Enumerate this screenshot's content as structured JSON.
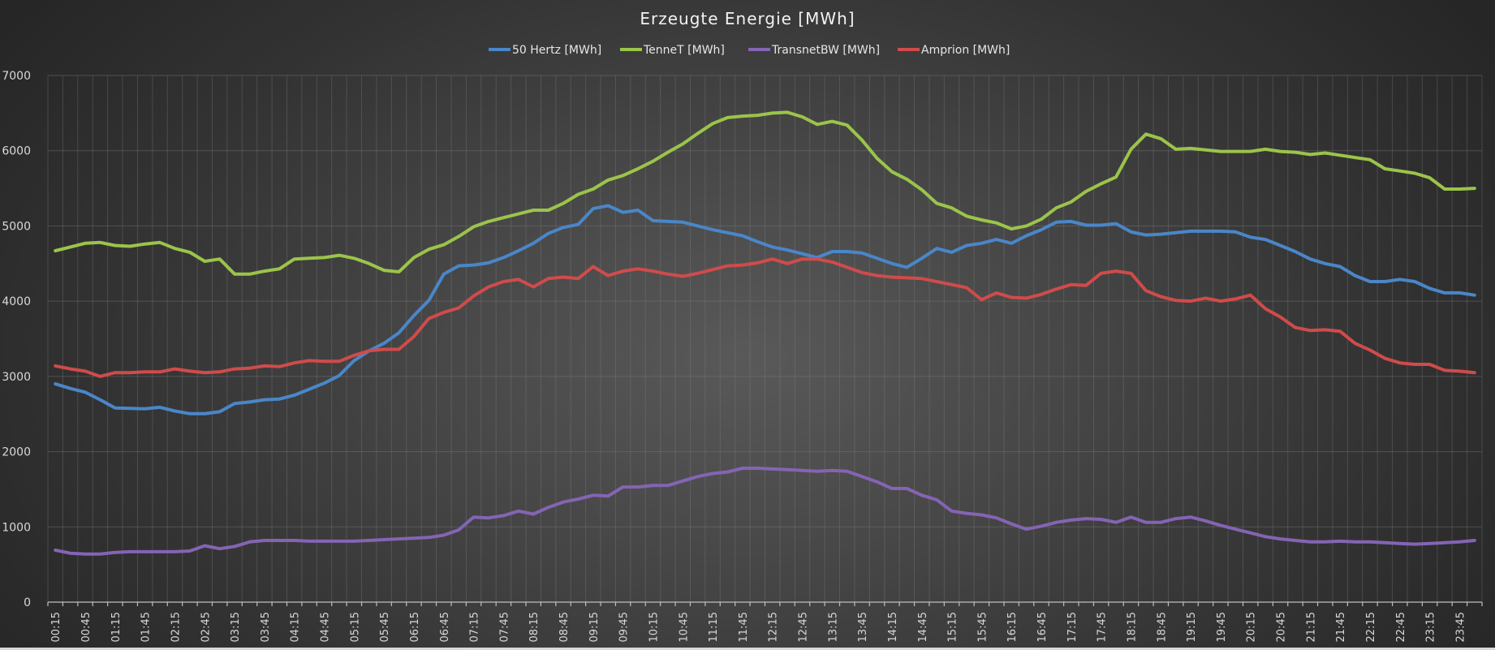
{
  "chart_data": {
    "type": "line",
    "title": "Erzeugte Energie [MWh]",
    "xlabel": "",
    "ylabel": "",
    "ylim": [
      0,
      7000
    ],
    "yticks": [
      0,
      1000,
      2000,
      3000,
      4000,
      5000,
      6000,
      7000
    ],
    "grid": true,
    "legend_position": "top",
    "x": [
      "00:15",
      "00:30",
      "00:45",
      "01:00",
      "01:15",
      "01:30",
      "01:45",
      "02:00",
      "02:15",
      "02:30",
      "02:45",
      "03:00",
      "03:15",
      "03:30",
      "03:45",
      "04:00",
      "04:15",
      "04:30",
      "04:45",
      "05:00",
      "05:15",
      "05:30",
      "05:45",
      "06:00",
      "06:15",
      "06:30",
      "06:45",
      "07:00",
      "07:15",
      "07:30",
      "07:45",
      "08:00",
      "08:15",
      "08:30",
      "08:45",
      "09:00",
      "09:15",
      "09:30",
      "09:45",
      "10:00",
      "10:15",
      "10:30",
      "10:45",
      "11:00",
      "11:15",
      "11:30",
      "11:45",
      "12:00",
      "12:15",
      "12:30",
      "12:45",
      "13:00",
      "13:15",
      "13:30",
      "13:45",
      "14:00",
      "14:15",
      "14:30",
      "14:45",
      "15:00",
      "15:15",
      "15:30",
      "15:45",
      "16:00",
      "16:15",
      "16:30",
      "16:45",
      "17:00",
      "17:15",
      "17:30",
      "17:45",
      "18:00",
      "18:15",
      "18:30",
      "18:45",
      "19:00",
      "19:15",
      "19:30",
      "19:45",
      "20:00",
      "20:15",
      "20:30",
      "20:45",
      "21:00",
      "21:15",
      "21:30",
      "21:45",
      "22:00",
      "22:15",
      "22:30",
      "22:45",
      "23:00",
      "23:15",
      "23:30",
      "23:45",
      "00:00"
    ],
    "xtick_labels": [
      "00:15",
      "00:45",
      "01:15",
      "01:45",
      "02:15",
      "02:45",
      "03:15",
      "03:45",
      "04:15",
      "04:45",
      "05:15",
      "05:45",
      "06:15",
      "06:45",
      "07:15",
      "07:45",
      "08:15",
      "08:45",
      "09:15",
      "09:45",
      "10:15",
      "10:45",
      "11:15",
      "11:45",
      "12:15",
      "12:45",
      "13:15",
      "13:45",
      "14:15",
      "14:45",
      "15:15",
      "15:45",
      "16:15",
      "16:45",
      "17:15",
      "17:45",
      "18:15",
      "18:45",
      "19:15",
      "19:45",
      "20:15",
      "20:45",
      "21:15",
      "21:45",
      "22:15",
      "22:45",
      "23:15",
      "23:45"
    ],
    "series": [
      {
        "name": "50 Hertz [MWh]",
        "color": "#4a86c8",
        "values": [
          2900,
          2840,
          2790,
          2690,
          2580,
          2575,
          2570,
          2590,
          2540,
          2505,
          2505,
          2530,
          2640,
          2660,
          2690,
          2700,
          2750,
          2830,
          2910,
          3010,
          3210,
          3340,
          3440,
          3580,
          3810,
          4010,
          4360,
          4470,
          4480,
          4510,
          4580,
          4670,
          4770,
          4900,
          4980,
          5020,
          5230,
          5270,
          5180,
          5210,
          5070,
          5060,
          5050,
          5000,
          4950,
          4910,
          4870,
          4790,
          4720,
          4680,
          4630,
          4580,
          4660,
          4660,
          4640,
          4570,
          4500,
          4450,
          4570,
          4700,
          4650,
          4740,
          4770,
          4820,
          4770,
          4870,
          4950,
          5050,
          5060,
          5010,
          5010,
          5030,
          4920,
          4880,
          4890,
          4910,
          4930,
          4930,
          4930,
          4920,
          4850,
          4820,
          4740,
          4660,
          4560,
          4500,
          4460,
          4340,
          4260,
          4260,
          4290,
          4260,
          4170,
          4110,
          4110,
          4080
        ]
      },
      {
        "name": "TenneT [MWh]",
        "color": "#9bc44a",
        "values": [
          4670,
          4720,
          4770,
          4780,
          4740,
          4730,
          4760,
          4780,
          4700,
          4650,
          4530,
          4560,
          4360,
          4360,
          4400,
          4430,
          4560,
          4570,
          4580,
          4610,
          4570,
          4500,
          4410,
          4390,
          4580,
          4690,
          4750,
          4860,
          4990,
          5060,
          5110,
          5160,
          5210,
          5210,
          5300,
          5420,
          5490,
          5610,
          5670,
          5760,
          5860,
          5980,
          6090,
          6230,
          6360,
          6440,
          6460,
          6470,
          6500,
          6510,
          6450,
          6350,
          6390,
          6340,
          6140,
          5900,
          5720,
          5620,
          5480,
          5300,
          5240,
          5130,
          5080,
          5040,
          4960,
          5000,
          5090,
          5240,
          5320,
          5460,
          5560,
          5650,
          6020,
          6220,
          6160,
          6020,
          6030,
          6010,
          5990,
          5990,
          5990,
          6020,
          5990,
          5980,
          5950,
          5970,
          5940,
          5910,
          5880,
          5760,
          5730,
          5700,
          5640,
          5490,
          5490,
          5500
        ]
      },
      {
        "name": "TransnetBW [MWh]",
        "color": "#8464b4",
        "values": [
          690,
          650,
          640,
          640,
          660,
          670,
          670,
          670,
          670,
          680,
          750,
          710,
          740,
          800,
          820,
          820,
          820,
          810,
          810,
          810,
          810,
          820,
          830,
          840,
          850,
          860,
          890,
          960,
          1130,
          1120,
          1150,
          1210,
          1170,
          1260,
          1330,
          1370,
          1420,
          1410,
          1530,
          1530,
          1550,
          1550,
          1610,
          1670,
          1710,
          1730,
          1780,
          1780,
          1770,
          1760,
          1750,
          1740,
          1750,
          1740,
          1670,
          1600,
          1510,
          1510,
          1420,
          1360,
          1210,
          1180,
          1160,
          1120,
          1040,
          970,
          1010,
          1060,
          1090,
          1110,
          1100,
          1060,
          1130,
          1060,
          1060,
          1110,
          1130,
          1080,
          1020,
          970,
          920,
          870,
          840,
          820,
          800,
          800,
          810,
          800,
          800,
          790,
          780,
          770,
          780,
          790,
          800,
          820
        ]
      },
      {
        "name": "Amprion [MWh]",
        "color": "#d04b4b",
        "values": [
          3140,
          3100,
          3070,
          3000,
          3050,
          3050,
          3060,
          3060,
          3100,
          3070,
          3050,
          3060,
          3100,
          3110,
          3140,
          3130,
          3180,
          3210,
          3200,
          3200,
          3280,
          3340,
          3360,
          3360,
          3530,
          3770,
          3850,
          3910,
          4070,
          4190,
          4260,
          4290,
          4190,
          4300,
          4320,
          4300,
          4460,
          4340,
          4400,
          4430,
          4400,
          4360,
          4330,
          4370,
          4420,
          4470,
          4480,
          4510,
          4560,
          4500,
          4560,
          4560,
          4520,
          4450,
          4380,
          4340,
          4320,
          4310,
          4300,
          4260,
          4220,
          4180,
          4020,
          4110,
          4050,
          4040,
          4090,
          4160,
          4220,
          4210,
          4370,
          4400,
          4370,
          4140,
          4060,
          4010,
          4000,
          4040,
          4000,
          4030,
          4080,
          3900,
          3790,
          3650,
          3610,
          3620,
          3600,
          3440,
          3350,
          3240,
          3180,
          3160,
          3160,
          3080,
          3070,
          3050
        ]
      }
    ]
  }
}
